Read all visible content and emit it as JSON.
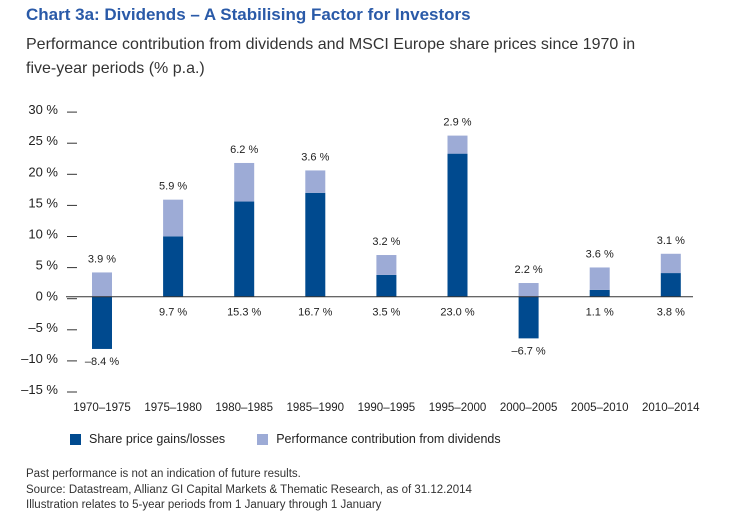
{
  "title": "Chart 3a: Dividends – A Stabilising Factor for Investors",
  "subtitle": "Performance contribution from dividends and MSCI Europe share prices since 1970 in five-year periods (% p.a.)",
  "chart_data": {
    "type": "bar",
    "stacked": true,
    "categories": [
      "1970–1975",
      "1975–1980",
      "1980–1985",
      "1985–1990",
      "1990–1995",
      "1995–2000",
      "2000–2005",
      "2005–2010",
      "2010–2014"
    ],
    "series": [
      {
        "name": "Share price gains/losses",
        "color": "#004a8f",
        "values": [
          -8.4,
          9.7,
          15.3,
          16.7,
          3.5,
          23.0,
          -6.7,
          1.1,
          3.8
        ],
        "labels": [
          "–8.4 %",
          "9.7 %",
          "15.3 %",
          "16.7 %",
          "3.5 %",
          "23.0 %",
          "–6.7 %",
          "1.1 %",
          "3.8 %"
        ]
      },
      {
        "name": "Performance contribution from dividends",
        "color": "#9dabd6",
        "values": [
          3.9,
          5.9,
          6.2,
          3.6,
          3.2,
          2.9,
          2.2,
          3.6,
          3.1
        ],
        "labels": [
          "3.9 %",
          "5.9 %",
          "6.2 %",
          "3.6 %",
          "3.2 %",
          "2.9 %",
          "2.2 %",
          "3.6 %",
          "3.1 %"
        ]
      }
    ],
    "yticks": [
      30,
      25,
      20,
      15,
      10,
      5,
      0,
      -5,
      -10,
      -15
    ],
    "ytick_labels": [
      "30 %",
      "25 %",
      "20 %",
      "15 %",
      "10 %",
      "5 %",
      "0 %",
      "–5 %",
      "–10 %",
      "–15 %"
    ],
    "ylim": [
      -15,
      30
    ],
    "legend": "bottom",
    "grid": false
  },
  "notes": [
    "Past performance is not an indication of future results.",
    "Source: Datastream, Allianz GI Capital Markets & Thematic Research, as of 31.12.2014",
    "Illustration relates to 5-year periods from 1 January through 1 January"
  ]
}
